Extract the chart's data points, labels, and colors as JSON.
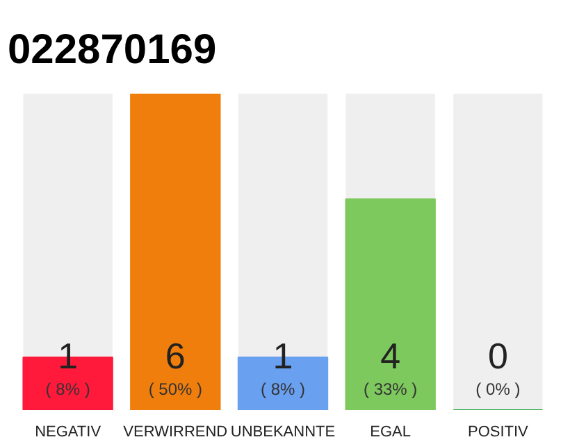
{
  "chart_data": {
    "type": "bar",
    "title": "022870169",
    "categories": [
      "NEGATIV",
      "VERWIRREND",
      "UNBEKANNTE",
      "EGAL",
      "POSITIV"
    ],
    "values": [
      1,
      6,
      1,
      4,
      0
    ],
    "colors": [
      "#ff1a3c",
      "#f07e0c",
      "#6aa0f0",
      "#7ec95e",
      "#2ea84a"
    ],
    "ylim": [
      0,
      6
    ],
    "tick_labels": "x",
    "grid": false,
    "value_labels": [
      "1\n( 8% )",
      "6\n( 50% )",
      "1\n( 8% )",
      "4\n( 33% )",
      "0\n( 0% )"
    ]
  }
}
